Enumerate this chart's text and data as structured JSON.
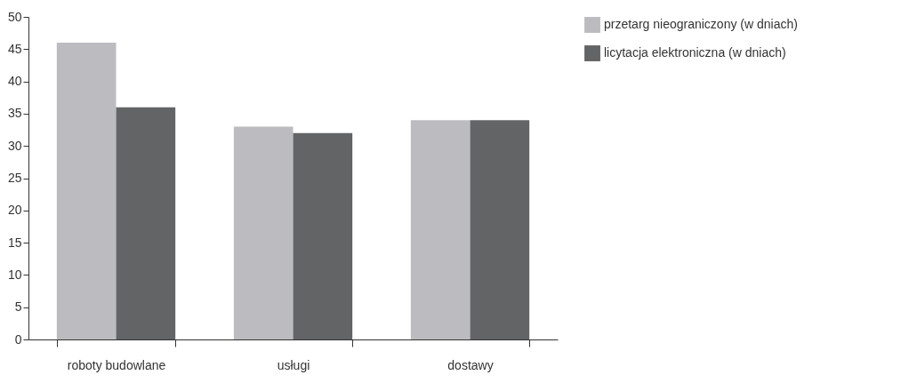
{
  "chart_data": {
    "type": "bar",
    "categories": [
      "roboty budowlane",
      "usługi",
      "dostawy"
    ],
    "series": [
      {
        "name": "przetarg nieograniczony (w dniach)",
        "color": "#bcbcc0",
        "values": [
          46,
          33,
          34
        ]
      },
      {
        "name": "licytacja elektroniczna (w dniach)",
        "color": "#636466",
        "values": [
          36,
          32,
          34
        ]
      }
    ],
    "ylim": [
      0,
      50
    ],
    "yticks": [
      0,
      5,
      10,
      15,
      20,
      25,
      30,
      35,
      40,
      45,
      50
    ],
    "grid": false,
    "legend": "right"
  }
}
